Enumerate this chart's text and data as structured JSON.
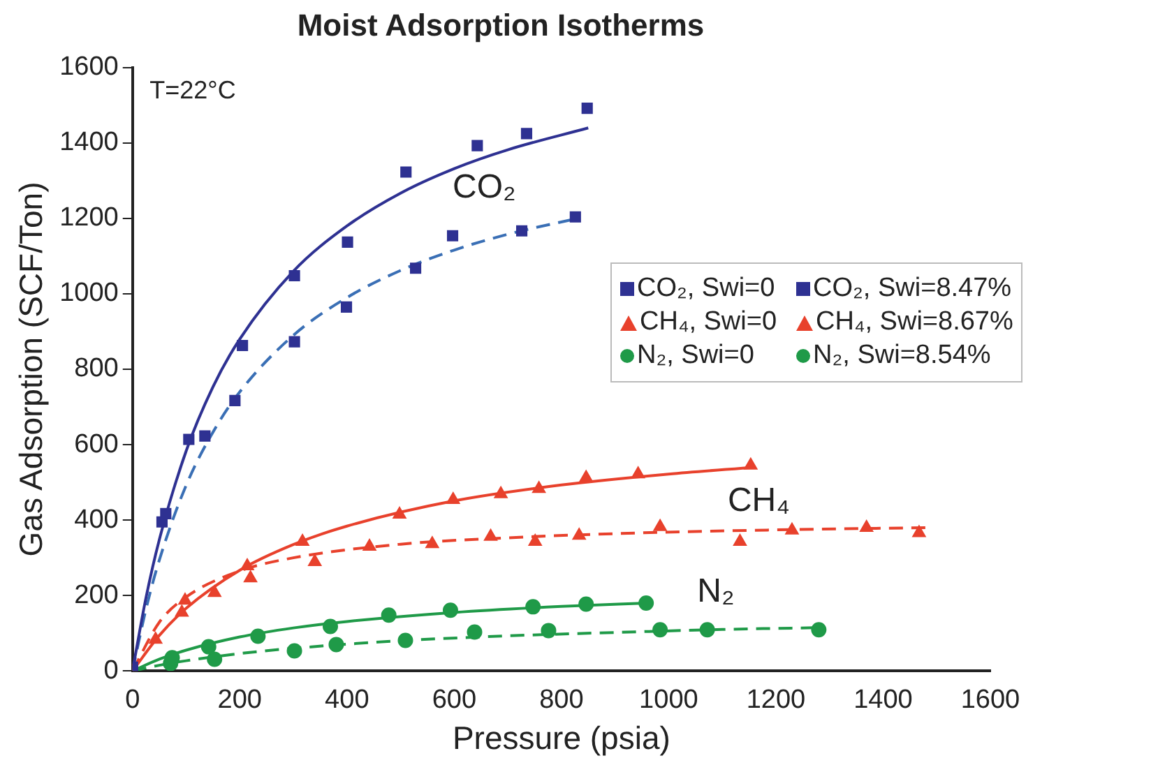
{
  "chart_data": {
    "type": "scatter",
    "title": "Moist Adsorption Isotherms",
    "xlabel": "Pressure (psia)",
    "ylabel": "Gas Adsorption (SCF/Ton)",
    "xlim": [
      0,
      1600
    ],
    "xticks": [
      0,
      200,
      400,
      600,
      800,
      1000,
      1200,
      1400,
      1600
    ],
    "ylim": [
      0,
      1600
    ],
    "yticks": [
      0,
      200,
      400,
      600,
      800,
      1000,
      1200,
      1400,
      1600
    ],
    "grid": false,
    "legend": "right",
    "annotations": [
      "T=22°C",
      "CO₂",
      "CH₄",
      "N₂"
    ],
    "series": [
      {
        "name": "CO₂, Swi=0",
        "marker": "square",
        "color": "#2e3192",
        "x": [
          0,
          62,
          105,
          205,
          302,
          401,
          510,
          643,
          735,
          848
        ],
        "values": [
          10,
          417,
          614,
          863,
          1048,
          1137,
          1323,
          1393,
          1425,
          1492
        ]
      },
      {
        "name": "CO₂, Swi=8.47%",
        "marker": "square",
        "color": "#2e3192",
        "x": [
          0,
          55,
          135,
          191,
          302,
          399,
          528,
          597,
          726,
          826
        ],
        "values": [
          0,
          395,
          623,
          717,
          873,
          965,
          1068,
          1154,
          1167,
          1204
        ]
      },
      {
        "name": "CH₄, Swi=0",
        "marker": "triangle",
        "color": "#e8412c",
        "x": [
          0,
          98,
          214,
          317,
          498,
          598,
          687,
          758,
          846,
          943,
          1153
        ],
        "values": [
          0,
          187,
          278,
          343,
          415,
          454,
          469,
          483,
          512,
          522,
          545
        ]
      },
      {
        "name": "CH₄, Swi=8.67%",
        "marker": "triangle",
        "color": "#e8412c",
        "x": [
          43,
          92,
          153,
          220,
          340,
          442,
          559,
          668,
          751,
          833,
          984,
          1133,
          1230,
          1369,
          1467
        ],
        "values": [
          83,
          155,
          207,
          246,
          289,
          330,
          337,
          356,
          343,
          359,
          382,
          343,
          373,
          380,
          366
        ]
      },
      {
        "name": "N₂, Swi=0",
        "marker": "circle",
        "color": "#1f9a48",
        "x": [
          74,
          142,
          234,
          369,
          478,
          593,
          747,
          846,
          958
        ],
        "values": [
          35,
          64,
          92,
          118,
          148,
          161,
          170,
          177,
          180
        ]
      },
      {
        "name": "N₂, Swi=8.54%",
        "marker": "circle",
        "color": "#1f9a48",
        "x": [
          71,
          153,
          302,
          380,
          509,
          638,
          776,
          984,
          1072,
          1280
        ],
        "values": [
          20,
          31,
          53,
          70,
          81,
          103,
          107,
          109,
          109,
          109
        ]
      },
      {
        "type": "line",
        "marker": "none",
        "line_style": "solid",
        "color": "#2e3192",
        "x": [
          0,
          25,
          50,
          100,
          150,
          200,
          300,
          400,
          500,
          600,
          700,
          850
        ],
        "values": [
          0,
          193,
          348,
          583,
          753,
          880,
          1060,
          1180,
          1267,
          1332,
          1382,
          1440
        ]
      },
      {
        "type": "line",
        "marker": "none",
        "line_style": "dashed",
        "color": "#3a6fb5",
        "x": [
          0,
          25,
          50,
          100,
          150,
          200,
          300,
          400,
          500,
          600,
          700,
          830
        ],
        "values": [
          0,
          163,
          294,
          492,
          633,
          740,
          890,
          990,
          1062,
          1116,
          1158,
          1200
        ]
      },
      {
        "type": "line",
        "marker": "none",
        "line_style": "solid",
        "color": "#e8412c",
        "x": [
          0,
          50,
          100,
          200,
          300,
          400,
          600,
          800,
          1000,
          1160
        ],
        "values": [
          0,
          94,
          166,
          267,
          335,
          384,
          451,
          493,
          522,
          540
        ]
      },
      {
        "type": "line",
        "marker": "none",
        "line_style": "dashed",
        "color": "#e8412c",
        "x": [
          0,
          50,
          100,
          200,
          300,
          500,
          700,
          900,
          1200,
          1480
        ],
        "values": [
          0,
          129,
          196,
          265,
          300,
          336,
          353,
          364,
          374,
          380
        ]
      },
      {
        "type": "line",
        "marker": "none",
        "line_style": "solid",
        "color": "#1f9a48",
        "x": [
          0,
          50,
          100,
          200,
          300,
          400,
          600,
          800,
          960
        ],
        "values": [
          0,
          31,
          55,
          90,
          114,
          131,
          155,
          171,
          180
        ]
      },
      {
        "type": "line",
        "marker": "none",
        "line_style": "dashed",
        "color": "#1f9a48",
        "x": [
          0,
          50,
          100,
          200,
          300,
          500,
          700,
          900,
          1100,
          1290
        ],
        "values": [
          0,
          15,
          27,
          46,
          60,
          80,
          93,
          102,
          110,
          115
        ]
      }
    ]
  }
}
